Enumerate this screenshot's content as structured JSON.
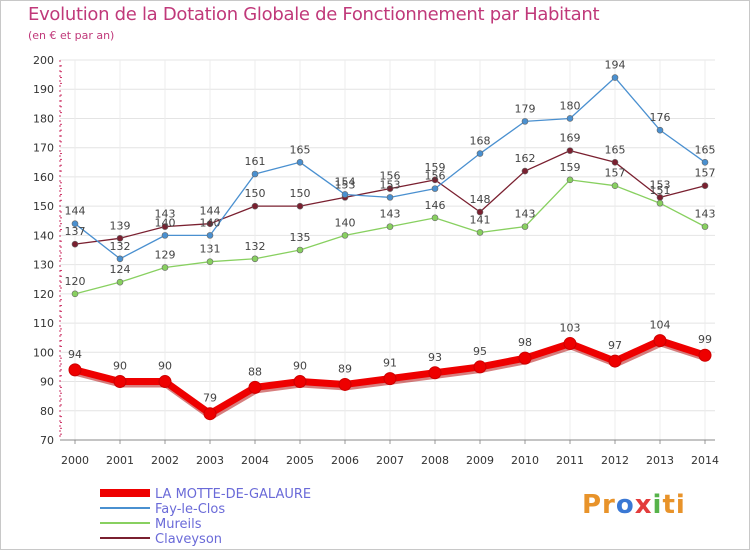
{
  "title": "Evolution de la Dotation Globale de Fonctionnement par Habitant",
  "subtitle": "(en € et par an)",
  "logo": {
    "parts": [
      {
        "text": "Pr",
        "color": "#e8932a"
      },
      {
        "text": "o",
        "color": "#3a78d4"
      },
      {
        "text": "x",
        "color": "#e33c3c"
      },
      {
        "text": "i",
        "color": "#57b34a"
      },
      {
        "text": "ti",
        "color": "#e8932a"
      }
    ]
  },
  "chart_data": {
    "type": "line",
    "x": [
      "2000",
      "2001",
      "2002",
      "2003",
      "2004",
      "2005",
      "2006",
      "2007",
      "2008",
      "2009",
      "2010",
      "2011",
      "2012",
      "2013",
      "2014"
    ],
    "ylim": [
      70,
      200
    ],
    "yticks": [
      70,
      80,
      90,
      100,
      110,
      120,
      130,
      140,
      150,
      160,
      170,
      180,
      190,
      200
    ],
    "grid": true,
    "legend": "bottom-left",
    "series": [
      {
        "name": "LA MOTTE-DE-GALAURE",
        "color": "#ee0000",
        "values": [
          94,
          90,
          90,
          79,
          88,
          90,
          89,
          91,
          93,
          95,
          98,
          103,
          97,
          104,
          99
        ]
      },
      {
        "name": "Fay-le-Clos",
        "color": "#4a90d0",
        "values": [
          144,
          132,
          140,
          140,
          161,
          165,
          154,
          153,
          156,
          168,
          179,
          180,
          194,
          176,
          165
        ]
      },
      {
        "name": "Mureils",
        "color": "#88d060",
        "values": [
          120,
          124,
          129,
          131,
          132,
          135,
          140,
          143,
          146,
          141,
          143,
          159,
          157,
          151,
          143
        ]
      },
      {
        "name": "Claveyson",
        "color": "#7a2030",
        "values": [
          137,
          139,
          143,
          144,
          150,
          150,
          153,
          156,
          159,
          148,
          162,
          169,
          165,
          153,
          157
        ]
      }
    ]
  }
}
